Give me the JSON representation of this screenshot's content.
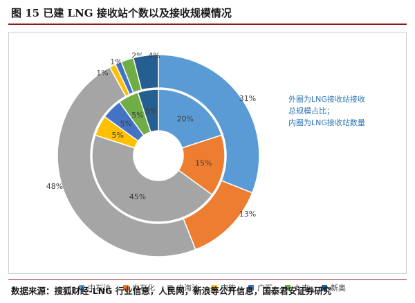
{
  "title": "图 15  已建 LNG 接收站个数以及接收规模情况",
  "note": {
    "line1": "外圈为LNG接收站接收",
    "line2": "总规模占比；",
    "line3": "内圈为LNG接收站数量"
  },
  "source": "数据来源：搜狐财经-LNG 行业信息，人民网，新浪等公开信息，国泰君安证券研究",
  "colors": {
    "中石油": "#5b9bd5",
    "中石化": "#ed7d31",
    "中海油": "#a5a5a5",
    "申能": "#ffc000",
    "广汇": "#4472c4",
    "九丰": "#70ad47",
    "新奥": "#255e91"
  },
  "chart_data": {
    "type": "donut",
    "categories": [
      "中石油",
      "中石化",
      "中海油",
      "申能",
      "广汇",
      "九丰",
      "新奥"
    ],
    "series": [
      {
        "ring": "outer",
        "values": [
          31,
          13,
          48,
          1,
          1,
          2,
          4
        ],
        "labels": [
          "31%",
          "13%",
          "48%",
          "1%",
          "1%",
          "2%",
          "4%"
        ]
      },
      {
        "ring": "inner",
        "values": [
          20,
          15,
          45,
          5,
          5,
          5,
          5
        ],
        "labels": [
          "20%",
          "15%",
          "45%",
          "5%",
          "5%",
          "5%",
          "5%"
        ]
      }
    ],
    "legend_position": "bottom"
  }
}
